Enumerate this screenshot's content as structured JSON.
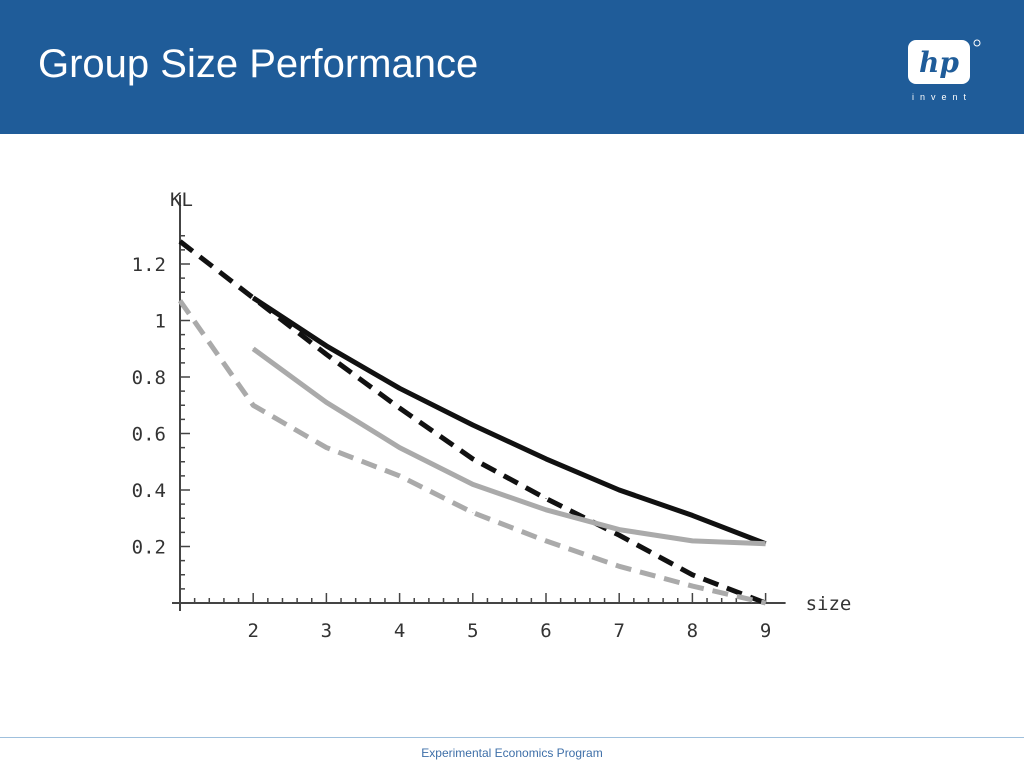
{
  "header": {
    "title": "Group Size Performance",
    "logo": {
      "mark": "hp",
      "tagline": "invent"
    },
    "background": "#1f5c99"
  },
  "footer": {
    "text": "Experimental Economics Program"
  },
  "chart_data": {
    "type": "line",
    "xlabel": "size",
    "ylabel": "KL",
    "xlim": [
      1,
      9
    ],
    "ylim": [
      0,
      1.3
    ],
    "xticks": [
      "2",
      "3",
      "4",
      "5",
      "6",
      "7",
      "8",
      "9"
    ],
    "yticks": [
      "0.2",
      "0.4",
      "0.6",
      "0.8",
      "1",
      "1.2"
    ],
    "grid": false,
    "series": [
      {
        "color": "#111111",
        "dash": "solid",
        "x": [
          2,
          3,
          4,
          5,
          6,
          7,
          8,
          9
        ],
        "y": [
          1.08,
          0.91,
          0.76,
          0.63,
          0.51,
          0.4,
          0.31,
          0.21
        ]
      },
      {
        "color": "#111111",
        "dash": "dashed",
        "x": [
          1,
          2,
          3,
          4,
          5,
          6,
          7,
          8,
          9
        ],
        "y": [
          1.28,
          1.08,
          0.88,
          0.69,
          0.51,
          0.37,
          0.24,
          0.1,
          0.0
        ]
      },
      {
        "color": "#aaaaaa",
        "dash": "solid",
        "x": [
          2,
          3,
          4,
          5,
          6,
          7,
          8,
          9
        ],
        "y": [
          0.9,
          0.71,
          0.55,
          0.42,
          0.33,
          0.26,
          0.22,
          0.21
        ]
      },
      {
        "color": "#aaaaaa",
        "dash": "dashed",
        "x": [
          1,
          2,
          3,
          4,
          5,
          6,
          7,
          8,
          9
        ],
        "y": [
          1.07,
          0.7,
          0.55,
          0.45,
          0.32,
          0.22,
          0.13,
          0.06,
          0.0
        ]
      }
    ]
  }
}
